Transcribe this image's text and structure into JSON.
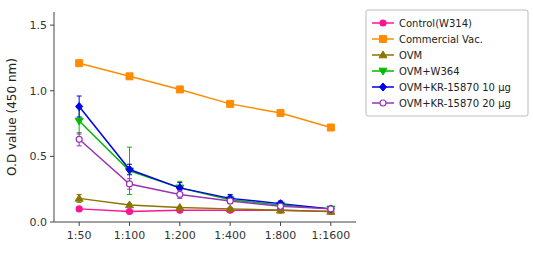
{
  "chart_data": {
    "type": "line",
    "y_label": "O.D value (450 nm)",
    "categories": [
      "1:50",
      "1:100",
      "1:200",
      "1:400",
      "1:800",
      "1:1600"
    ],
    "series": [
      {
        "name": "Control(W314)",
        "color": "#FF1493",
        "marker": "circle",
        "values": [
          0.1,
          0.08,
          0.09,
          0.09,
          0.09,
          0.08
        ],
        "errors": [
          0.01,
          0.005,
          0.005,
          0.005,
          0.005,
          0.005
        ]
      },
      {
        "name": "Commercial Vac.",
        "color": "#FF8C00",
        "marker": "square",
        "values": [
          1.21,
          1.11,
          1.01,
          0.9,
          0.83,
          0.72
        ],
        "errors": [
          0.02,
          0.02,
          0.02,
          0.02,
          0.02,
          0.02
        ]
      },
      {
        "name": "OVM",
        "color": "#8B7500",
        "marker": "triangle-up",
        "values": [
          0.18,
          0.13,
          0.11,
          0.1,
          0.09,
          0.08
        ],
        "errors": [
          0.03,
          0.01,
          0.01,
          0.005,
          0.005,
          0.005
        ]
      },
      {
        "name": "OVM+W364",
        "color": "#00BB00",
        "marker": "triangle-down",
        "values": [
          0.77,
          0.39,
          0.26,
          0.17,
          0.13,
          0.1
        ],
        "errors": [
          0.1,
          0.18,
          0.05,
          0.03,
          0.02,
          0.01
        ]
      },
      {
        "name": "OVM+KR-15870 10 μg",
        "color": "#0000EE",
        "marker": "diamond",
        "values": [
          0.88,
          0.4,
          0.26,
          0.18,
          0.14,
          0.1
        ],
        "errors": [
          0.08,
          0.04,
          0.04,
          0.03,
          0.02,
          0.01
        ]
      },
      {
        "name": "OVM+KR-15870 20 μg",
        "color": "#9933BB",
        "marker": "circle-open",
        "values": [
          0.63,
          0.29,
          0.21,
          0.16,
          0.12,
          0.1
        ],
        "errors": [
          0.05,
          0.04,
          0.03,
          0.02,
          0.01,
          0.01
        ]
      }
    ],
    "ylim": [
      0,
      1.6
    ],
    "yticks": [
      {
        "value": 0.0,
        "label": "0.0"
      },
      {
        "value": 0.5,
        "label": "0.5"
      },
      {
        "value": 1.0,
        "label": "1.0"
      },
      {
        "value": 1.5,
        "label": "1.5"
      }
    ],
    "grid": false,
    "legend": "right"
  }
}
